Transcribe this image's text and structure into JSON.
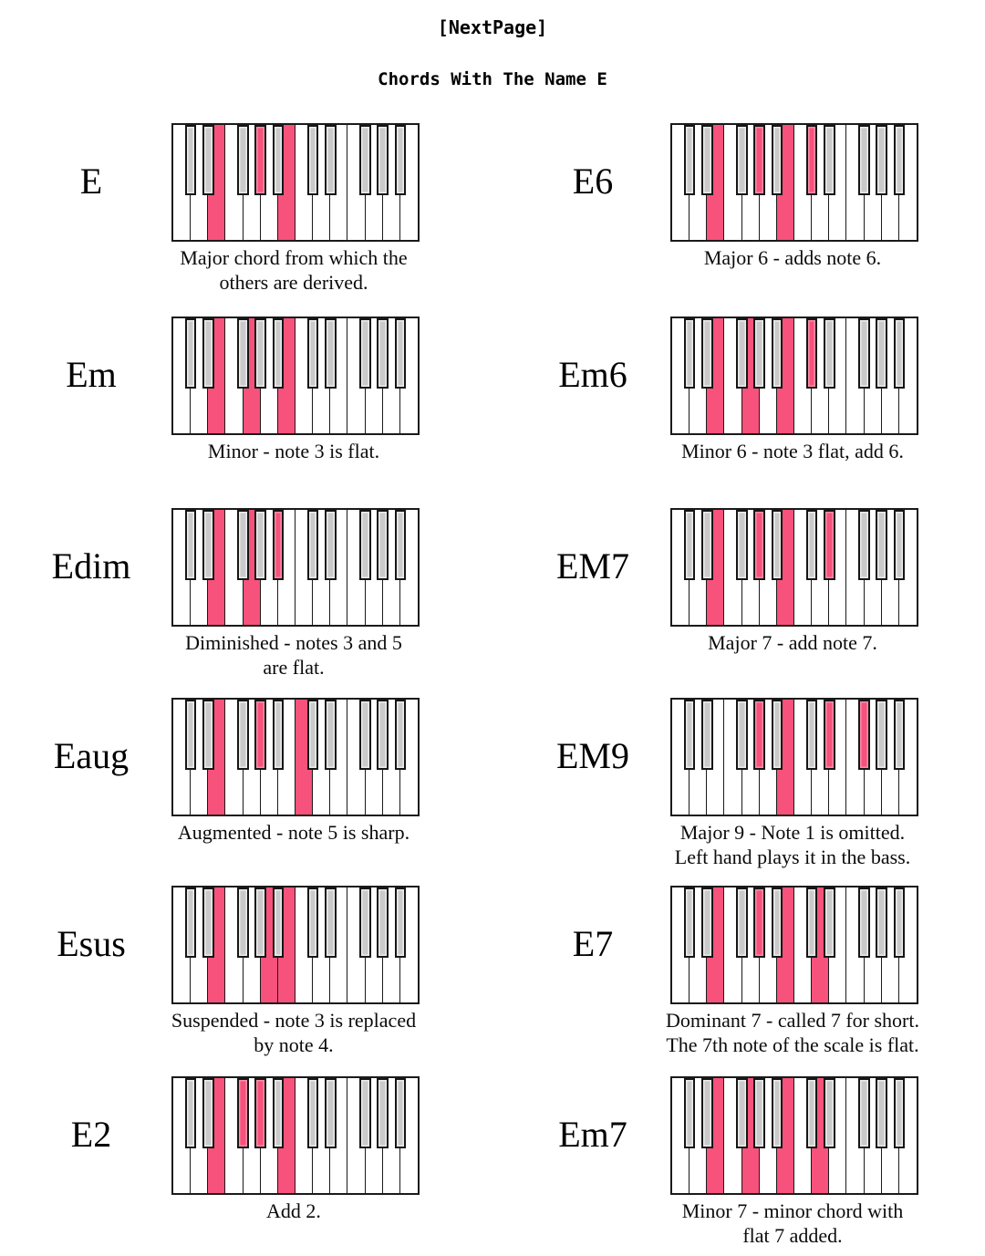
{
  "header": {
    "nav_label": "[NextPage]",
    "title": "Chords With The Name E"
  },
  "colors": {
    "highlight_pink": "#f6527b",
    "black_key_gray": "#cacaca",
    "key_outline": "#1a1a1a",
    "page_background": "#ffffff"
  },
  "keyboard_spec": {
    "white_key_count": 14,
    "octaves": 2,
    "white_notes": [
      "C1",
      "D1",
      "E1",
      "F1",
      "G1",
      "A1",
      "B1",
      "C2",
      "D2",
      "E2",
      "F2",
      "G2",
      "A2",
      "B2"
    ],
    "black_notes": [
      {
        "note": "C#1",
        "boundary": 1
      },
      {
        "note": "D#1",
        "boundary": 2
      },
      {
        "note": "F#1",
        "boundary": 4
      },
      {
        "note": "G#1",
        "boundary": 5
      },
      {
        "note": "A#1",
        "boundary": 6
      },
      {
        "note": "C#2",
        "boundary": 8
      },
      {
        "note": "D#2",
        "boundary": 9
      },
      {
        "note": "F#2",
        "boundary": 11
      },
      {
        "note": "G#2",
        "boundary": 12
      },
      {
        "note": "A#2",
        "boundary": 13
      }
    ]
  },
  "chords": [
    {
      "name": "E",
      "label": "E",
      "caption": "Major chord from which the others are derived.",
      "caption_lines": [
        "Major chord from which the",
        "others are derived."
      ],
      "highlighted_keys": [
        "E1",
        "G#1",
        "B1"
      ]
    },
    {
      "name": "E6",
      "label": "E6",
      "caption": "Major 6 - adds note 6.",
      "caption_lines": [
        "Major 6 - adds note 6."
      ],
      "highlighted_keys": [
        "E1",
        "G#1",
        "B1",
        "C#2"
      ]
    },
    {
      "name": "Em",
      "label": "Em",
      "caption": "Minor - note 3 is flat.",
      "caption_lines": [
        "Minor - note 3 is flat."
      ],
      "highlighted_keys": [
        "E1",
        "G1",
        "B1"
      ]
    },
    {
      "name": "Em6",
      "label": "Em6",
      "caption": "Minor 6 - note 3 flat, add 6.",
      "caption_lines": [
        "Minor 6 - note 3 flat, add 6."
      ],
      "highlighted_keys": [
        "E1",
        "G1",
        "B1",
        "C#2"
      ]
    },
    {
      "name": "Edim",
      "label": "Edim",
      "caption": "Diminished - notes 3 and 5 are flat.",
      "caption_lines": [
        "Diminished - notes 3 and 5",
        "are flat."
      ],
      "highlighted_keys": [
        "E1",
        "G1",
        "A#1"
      ]
    },
    {
      "name": "EM7",
      "label": "EM7",
      "caption": "Major 7 - add note 7.",
      "caption_lines": [
        "Major 7 - add note 7."
      ],
      "highlighted_keys": [
        "E1",
        "G#1",
        "B1",
        "D#2"
      ]
    },
    {
      "name": "Eaug",
      "label": "Eaug",
      "caption": "Augmented - note 5 is sharp.",
      "caption_lines": [
        "Augmented - note 5 is sharp."
      ],
      "highlighted_keys": [
        "E1",
        "G#1",
        "C2"
      ]
    },
    {
      "name": "EM9",
      "label": "EM9",
      "caption": "Major 9 - Note 1 is omitted. Left hand plays it in the bass.",
      "caption_lines": [
        "Major 9 - Note 1 is omitted.",
        "Left hand plays it in the bass."
      ],
      "highlighted_keys": [
        "G#1",
        "B1",
        "D#2",
        "F#2"
      ]
    },
    {
      "name": "Esus",
      "label": "Esus",
      "caption": "Suspended - note 3 is replaced by note 4.",
      "caption_lines": [
        "Suspended - note 3 is replaced",
        "by note 4."
      ],
      "highlighted_keys": [
        "E1",
        "A1",
        "B1"
      ]
    },
    {
      "name": "E7",
      "label": "E7",
      "caption": "Dominant 7 - called 7 for short. The 7th note of the scale is flat.",
      "caption_lines": [
        "Dominant 7 - called 7 for short.",
        "The 7th note of the scale is flat."
      ],
      "highlighted_keys": [
        "E1",
        "G#1",
        "B1",
        "D2"
      ]
    },
    {
      "name": "E2",
      "label": "E2",
      "caption": "Add 2.",
      "caption_lines": [
        "Add 2."
      ],
      "highlighted_keys": [
        "E1",
        "F#1",
        "G#1",
        "B1"
      ]
    },
    {
      "name": "Em7",
      "label": "Em7",
      "caption": "Minor 7 - minor chord with flat 7 added.",
      "caption_lines": [
        "Minor 7 - minor chord with",
        "flat 7 added."
      ],
      "highlighted_keys": [
        "E1",
        "G1",
        "B1",
        "D2"
      ]
    }
  ]
}
